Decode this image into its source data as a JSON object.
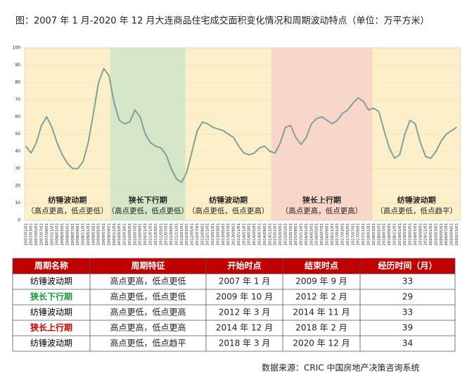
{
  "chart_data": {
    "type": "line",
    "title": "图：2007 年 1 月-2020 年 12 月大连商品住宅成交面积变化情况和周期波动特点（单位：万平方米）",
    "categories": [
      "2007/01/01",
      "2007/03/01",
      "2007/05/01",
      "2007/07/01",
      "2007/09/01",
      "2007/11/01",
      "2008/01/01",
      "2008/03/01",
      "2008/05/01",
      "2008/07/01",
      "2008/09/01",
      "2008/11/01",
      "2009/01/01",
      "2009/03/01",
      "2009/05/01",
      "2009/07/01",
      "2009/09/01",
      "2009/11/01",
      "2010/01/01",
      "2010/03/01",
      "2010/05/01",
      "2010/07/01",
      "2010/09/01",
      "2010/11/01",
      "2011/01/01",
      "2011/03/01",
      "2011/05/01",
      "2011/07/01",
      "2011/09/01",
      "2011/11/01",
      "2012/01/01",
      "2012/03/01",
      "2012/05/01",
      "2012/07/01",
      "2012/09/01",
      "2012/11/01",
      "2013/01/01",
      "2013/03/01",
      "2013/05/01",
      "2013/07/01",
      "2013/09/01",
      "2013/11/01",
      "2014/01/01",
      "2014/03/01",
      "2014/05/01",
      "2014/07/01",
      "2014/09/01",
      "2014/11/01",
      "2015/01/01",
      "2015/03/01",
      "2015/05/01",
      "2015/07/01",
      "2015/09/01",
      "2015/11/01",
      "2016/01/01",
      "2016/03/01",
      "2016/05/01",
      "2016/07/01",
      "2016/09/01",
      "2016/11/01",
      "2017/01/01",
      "2017/03/01",
      "2017/05/01",
      "2017/07/01",
      "2017/09/01",
      "2017/11/01",
      "2018/01/01",
      "2018/03/01",
      "2018/05/01",
      "2018/07/01",
      "2018/09/01",
      "2018/11/01",
      "2019/01/01",
      "2019/03/01",
      "2019/05/01",
      "2019/07/01",
      "2019/09/01",
      "2019/11/01",
      "2020/01/01",
      "2020/03/01",
      "2020/05/01",
      "2020/07/01",
      "2020/09/01",
      "2020/11/01"
    ],
    "series": [
      {
        "color": "#7fa19c",
        "values": [
          43,
          39,
          45,
          55,
          60,
          54,
          45,
          38,
          33,
          30,
          30,
          34,
          45,
          62,
          80,
          88,
          84,
          68,
          58,
          56,
          57,
          64,
          60,
          50,
          45,
          43,
          42,
          38,
          30,
          24,
          22,
          28,
          40,
          52,
          57,
          56,
          54,
          53,
          52,
          50,
          48,
          43,
          39,
          38,
          39,
          42,
          43,
          40,
          39,
          45,
          54,
          55,
          48,
          44,
          48,
          56,
          59,
          60,
          58,
          56,
          58,
          62,
          64,
          68,
          71,
          69,
          64,
          65,
          63,
          52,
          42,
          36,
          38,
          50,
          58,
          56,
          45,
          37,
          36,
          40,
          46,
          50,
          52,
          54
        ]
      }
    ],
    "ylim": [
      0,
      100
    ],
    "yticks": [
      0,
      10,
      20,
      30,
      40,
      50,
      60,
      70,
      80,
      90,
      100
    ],
    "grid": true,
    "bands": [
      {
        "label": "纺锤波动期",
        "note": "（高点更高，低点更低）",
        "color": "#fdf0c8"
      },
      {
        "label": "狭长下行期",
        "note": "（高点更低，低点更低）",
        "color": "#d5e7c6"
      },
      {
        "label": "纺锤波动期",
        "note": "（高点更低，低点更高）",
        "color": "#fdf0c8"
      },
      {
        "label": "狭长上行期",
        "note": "（高点更高，低点更高）",
        "color": "#f8d6c8"
      },
      {
        "label": "纺锤波动期",
        "note": "（高点更低，低点趋平）",
        "color": "#fdf0c8"
      }
    ]
  },
  "table": {
    "header": [
      "周期名称",
      "周期特征",
      "开始时点",
      "结束时点",
      "经历时间（月）"
    ],
    "header_color": "#c00000",
    "rows": [
      [
        "纺锤波动期",
        "高点更高，低点更低",
        "2007 年 1 月",
        "2009 年 9 月",
        33
      ],
      [
        "狭长下行期",
        "高点更低，低点更低",
        "2009 年 10 月",
        "2012 年 2 月",
        29
      ],
      [
        "纺锤波动期",
        "高点更低，低点更高",
        "2012 年 3 月",
        "2014 年 11 月",
        33
      ],
      [
        "狭长上行期",
        "高点更高，低点更高",
        "2014 年 12 月",
        "2018 年 2 月",
        39
      ],
      [
        "纺锤波动期",
        "高点更低，低点趋平",
        "2018 年 3 月",
        "2020 年 12 月",
        34
      ]
    ],
    "name_colors": [
      "#000000",
      "#1a9a3c",
      "#000000",
      "#d00000",
      "#000000"
    ]
  },
  "source": "数据来源：CRIC 中国房地产决策咨询系统"
}
